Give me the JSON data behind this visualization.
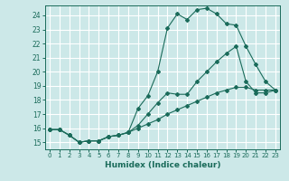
{
  "xlabel": "Humidex (Indice chaleur)",
  "ylabel": "",
  "bg_color": "#cce8e8",
  "line_color": "#1a6b5a",
  "grid_color": "#ffffff",
  "xlim": [
    -0.5,
    23.5
  ],
  "ylim": [
    14.5,
    24.7
  ],
  "xticks": [
    0,
    1,
    2,
    3,
    4,
    5,
    6,
    7,
    8,
    9,
    10,
    11,
    12,
    13,
    14,
    15,
    16,
    17,
    18,
    19,
    20,
    21,
    22,
    23
  ],
  "yticks": [
    15,
    16,
    17,
    18,
    19,
    20,
    21,
    22,
    23,
    24
  ],
  "curve1_x": [
    0,
    1,
    2,
    3,
    4,
    5,
    6,
    7,
    8,
    9,
    10,
    11,
    12,
    13,
    14,
    15,
    16,
    17,
    18,
    19,
    20,
    21,
    22,
    23
  ],
  "curve1_y": [
    15.9,
    15.9,
    15.5,
    15.0,
    15.1,
    15.1,
    15.4,
    15.5,
    15.7,
    17.4,
    18.3,
    20.0,
    23.1,
    24.1,
    23.7,
    24.4,
    24.5,
    24.1,
    23.4,
    23.3,
    21.8,
    20.5,
    19.3,
    18.7
  ],
  "curve2_x": [
    0,
    1,
    2,
    3,
    4,
    5,
    6,
    7,
    8,
    9,
    10,
    11,
    12,
    13,
    14,
    15,
    16,
    17,
    18,
    19,
    20,
    21,
    22,
    23
  ],
  "curve2_y": [
    15.9,
    15.9,
    15.5,
    15.0,
    15.1,
    15.1,
    15.4,
    15.5,
    15.7,
    16.2,
    17.0,
    17.8,
    18.5,
    18.4,
    18.4,
    19.3,
    20.0,
    20.7,
    21.3,
    21.8,
    19.3,
    18.5,
    18.5,
    18.7
  ],
  "curve3_x": [
    0,
    1,
    2,
    3,
    4,
    5,
    6,
    7,
    8,
    9,
    10,
    11,
    12,
    13,
    14,
    15,
    16,
    17,
    18,
    19,
    20,
    21,
    22,
    23
  ],
  "curve3_y": [
    15.9,
    15.9,
    15.5,
    15.0,
    15.1,
    15.1,
    15.4,
    15.5,
    15.7,
    16.0,
    16.3,
    16.6,
    17.0,
    17.3,
    17.6,
    17.9,
    18.2,
    18.5,
    18.7,
    18.9,
    18.9,
    18.7,
    18.7,
    18.7
  ]
}
